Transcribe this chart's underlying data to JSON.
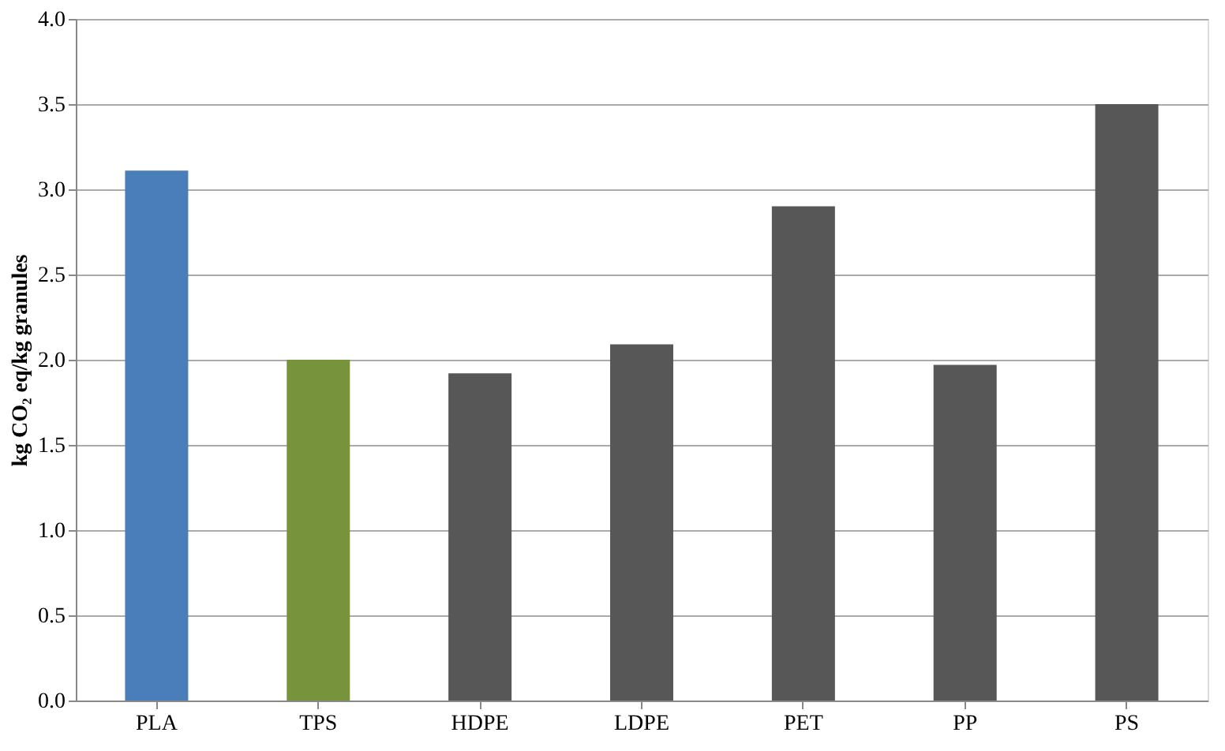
{
  "chart_data": {
    "type": "bar",
    "ylabel": "kg CO₂ eq/kg granules",
    "categories": [
      "PLA",
      "TPS",
      "HDPE",
      "LDPE",
      "PET",
      "PP",
      "PS"
    ],
    "values": [
      3.11,
      2.0,
      1.92,
      2.09,
      2.9,
      1.97,
      3.5
    ],
    "colors": [
      "#4a7ebb",
      "#77933c",
      "#575757",
      "#575757",
      "#575757",
      "#575757",
      "#575757"
    ],
    "ylim": [
      0,
      4.0
    ],
    "yticks": [
      {
        "value": 0,
        "label": "0.0"
      },
      {
        "value": 0.5,
        "label": "0.5"
      },
      {
        "value": 1.0,
        "label": "1.0"
      },
      {
        "value": 1.5,
        "label": "1.5"
      },
      {
        "value": 2.0,
        "label": "2.0"
      },
      {
        "value": 2.5,
        "label": "2.5"
      },
      {
        "value": 3.0,
        "label": "3.0"
      },
      {
        "value": 3.5,
        "label": "3.5"
      },
      {
        "value": 4.0,
        "label": "4.0"
      }
    ],
    "grid": "y"
  }
}
